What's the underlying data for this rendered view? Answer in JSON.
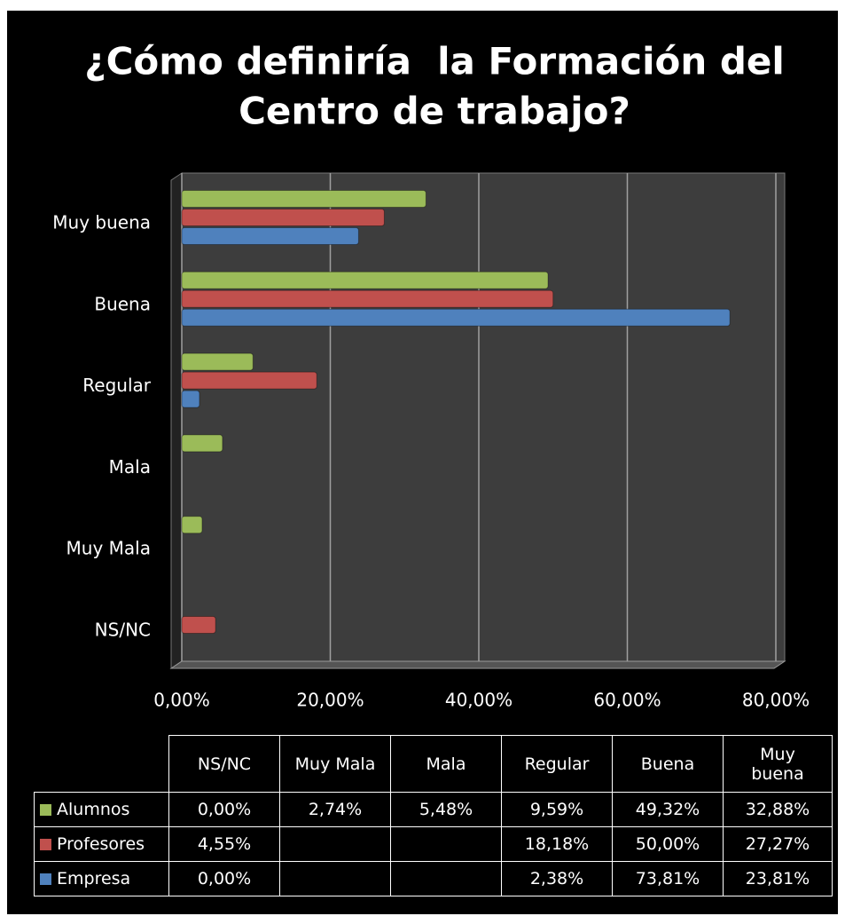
{
  "chart_data": {
    "type": "bar",
    "orientation": "horizontal",
    "title": [
      "¿Cómo definiría  la Formación del",
      "Centro de trabajo?"
    ],
    "categories": [
      "NS/NC",
      "Muy Mala",
      "Mala",
      "Regular",
      "Buena",
      "Muy buena"
    ],
    "series": [
      {
        "name": "Alumnos",
        "color": "#9bbb59",
        "values": [
          0,
          2.74,
          5.48,
          9.59,
          49.32,
          32.88
        ],
        "value_labels": [
          "0,00%",
          "2,74%",
          "5,48%",
          "9,59%",
          "49,32%",
          "32,88%"
        ]
      },
      {
        "name": "Profesores",
        "color": "#c0504d",
        "values": [
          4.55,
          null,
          null,
          18.18,
          50,
          27.27
        ],
        "value_labels": [
          "4,55%",
          null,
          null,
          "18,18%",
          "50,00%",
          "27,27%"
        ]
      },
      {
        "name": "Empresa",
        "color": "#4f81bd",
        "values": [
          0,
          null,
          null,
          2.38,
          73.81,
          23.81
        ],
        "value_labels": [
          "0,00%",
          null,
          null,
          "2,38%",
          "73,81%",
          "23,81%"
        ]
      }
    ],
    "xlim": [
      0,
      80
    ],
    "xticks": [
      {
        "value": 0,
        "label": "0,00%"
      },
      {
        "value": 20,
        "label": "20,00%"
      },
      {
        "value": 40,
        "label": "40,00%"
      },
      {
        "value": 60,
        "label": "60,00%"
      },
      {
        "value": 80,
        "label": "80,00%"
      }
    ],
    "grid": true,
    "data_table": true
  }
}
